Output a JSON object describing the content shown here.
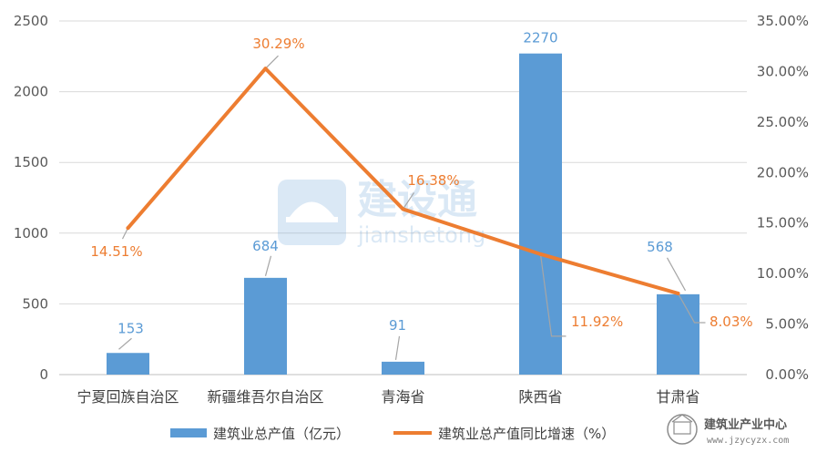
{
  "chart_data": {
    "type": "bar",
    "title": "",
    "categories": [
      "宁夏回族自治区",
      "新疆维吾尔自治区",
      "青海省",
      "陕西省",
      "甘肃省"
    ],
    "series": [
      {
        "name": "建筑业总产值（亿元）",
        "type": "bar",
        "axis": "left",
        "values": [
          153,
          684,
          91,
          2270,
          568
        ],
        "labels": [
          "153",
          "684",
          "91",
          "2270",
          "568"
        ]
      },
      {
        "name": "建筑业总产值同比增速（%）",
        "type": "line",
        "axis": "right",
        "values": [
          14.51,
          30.29,
          16.38,
          11.92,
          8.03
        ],
        "labels": [
          "14.51%",
          "30.29%",
          "16.38%",
          "11.92%",
          "8.03%"
        ]
      }
    ],
    "y_left": {
      "ylim": [
        0,
        2500
      ],
      "ticks": [
        0,
        500,
        1000,
        1500,
        2000,
        2500
      ],
      "tick_labels": [
        "0",
        "500",
        "1000",
        "1500",
        "2000",
        "2500"
      ]
    },
    "y_right": {
      "ylim": [
        0,
        35
      ],
      "ticks": [
        0,
        5,
        10,
        15,
        20,
        25,
        30,
        35
      ],
      "tick_labels": [
        "0.00%",
        "5.00%",
        "10.00%",
        "15.00%",
        "20.00%",
        "25.00%",
        "30.00%",
        "35.00%"
      ]
    },
    "grid": true,
    "legend_position": "bottom",
    "colors": {
      "bar": "#5b9bd5",
      "line": "#ed7d31",
      "bar_label": "#5b9bd5",
      "line_label": "#ed7d31",
      "grid": "#d9d9d9",
      "leader": "#a6a6a6"
    }
  },
  "watermark": {
    "brand": "建设通",
    "url": "jianshetong"
  },
  "logo": {
    "name": "建筑业产业中心",
    "url": "www.jzycyzx.com"
  }
}
